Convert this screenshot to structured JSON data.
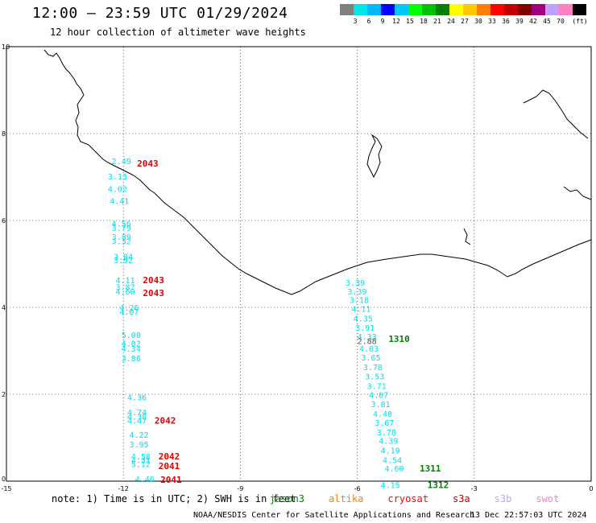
{
  "header": {
    "title": "12:00 – 23:59 UTC 01/29/2024",
    "subtitle": "12 hour collection of altimeter wave heights"
  },
  "scale": {
    "colors": [
      "#808080",
      "#00e5e5",
      "#00b8ff",
      "#0000ff",
      "#00c8ff",
      "#00ff00",
      "#00c000",
      "#008000",
      "#ffff00",
      "#ffc800",
      "#ff8000",
      "#ff0000",
      "#c00000",
      "#800000",
      "#a00080",
      "#c0a0ff",
      "#ff80c0",
      "#000000"
    ],
    "labels": [
      "3",
      "6",
      "9",
      "12",
      "15",
      "18",
      "21",
      "24",
      "27",
      "30",
      "33",
      "36",
      "39",
      "42",
      "45",
      "70"
    ],
    "unit": "(ft)"
  },
  "axes": {
    "x_ticks": [
      "-15",
      "-12",
      "-9",
      "-6",
      "-3",
      "0"
    ],
    "y_ticks": [
      "0",
      "2",
      "4",
      "6",
      "8",
      "10"
    ]
  },
  "observations": {
    "cyan": [
      {
        "text": "2.49",
        "lon": -12.3,
        "lat": 7.3
      },
      {
        "text": "3.13",
        "lon": -12.4,
        "lat": 6.94
      },
      {
        "text": "4.02",
        "lon": -12.4,
        "lat": 6.66
      },
      {
        "text": "4.41",
        "lon": -12.35,
        "lat": 6.38
      },
      {
        "text": "4.56",
        "lon": -12.3,
        "lat": 5.86
      },
      {
        "text": "3.79",
        "lon": -12.3,
        "lat": 5.76
      },
      {
        "text": "3.89",
        "lon": -12.3,
        "lat": 5.56
      },
      {
        "text": "3.32",
        "lon": -12.3,
        "lat": 5.45
      },
      {
        "text": "3.84",
        "lon": -12.25,
        "lat": 5.1
      },
      {
        "text": "3.92",
        "lon": -12.25,
        "lat": 5.02
      },
      {
        "text": "4.11",
        "lon": -12.2,
        "lat": 4.56
      },
      {
        "text": "3.87",
        "lon": -12.2,
        "lat": 4.4
      },
      {
        "text": "4.60",
        "lon": -12.2,
        "lat": 4.3
      },
      {
        "text": "4.26",
        "lon": -12.1,
        "lat": 3.93
      },
      {
        "text": "4.07",
        "lon": -12.1,
        "lat": 3.83
      },
      {
        "text": "5.00",
        "lon": -12.05,
        "lat": 3.3
      },
      {
        "text": "4.02",
        "lon": -12.05,
        "lat": 3.1
      },
      {
        "text": "4.34",
        "lon": -12.05,
        "lat": 2.98
      },
      {
        "text": "3.86",
        "lon": -12.05,
        "lat": 2.76
      },
      {
        "text": "4.36",
        "lon": -11.9,
        "lat": 1.86
      },
      {
        "text": "4.74",
        "lon": -11.9,
        "lat": 1.52
      },
      {
        "text": "4.38",
        "lon": -11.9,
        "lat": 1.42
      },
      {
        "text": "4.47",
        "lon": -11.9,
        "lat": 1.32
      },
      {
        "text": "4.22",
        "lon": -11.85,
        "lat": 1.0
      },
      {
        "text": "3.95",
        "lon": -11.85,
        "lat": 0.78
      },
      {
        "text": "4.58",
        "lon": -11.8,
        "lat": 0.5
      },
      {
        "text": "4.31",
        "lon": -11.8,
        "lat": 0.42
      },
      {
        "text": "5.12",
        "lon": -11.8,
        "lat": 0.32
      },
      {
        "text": "4.46",
        "lon": -11.7,
        "lat": -0.02
      },
      {
        "text": "3.39",
        "lon": -6.3,
        "lat": 4.5
      },
      {
        "text": "3.39",
        "lon": -6.25,
        "lat": 4.3
      },
      {
        "text": "3.18",
        "lon": -6.2,
        "lat": 4.1
      },
      {
        "text": "4.11",
        "lon": -6.15,
        "lat": 3.9
      },
      {
        "text": "4.35",
        "lon": -6.1,
        "lat": 3.68
      },
      {
        "text": "3.91",
        "lon": -6.05,
        "lat": 3.46
      },
      {
        "text": "4.33",
        "lon": -6.0,
        "lat": 3.26
      },
      {
        "text": "4.03",
        "lon": -5.95,
        "lat": 2.98
      },
      {
        "text": "3.65",
        "lon": -5.9,
        "lat": 2.78
      },
      {
        "text": "3.78",
        "lon": -5.85,
        "lat": 2.56
      },
      {
        "text": "3.53",
        "lon": -5.8,
        "lat": 2.34
      },
      {
        "text": "3.71",
        "lon": -5.75,
        "lat": 2.12
      },
      {
        "text": "4.07",
        "lon": -5.7,
        "lat": 1.92
      },
      {
        "text": "3.81",
        "lon": -5.65,
        "lat": 1.7
      },
      {
        "text": "4.40",
        "lon": -5.6,
        "lat": 1.48
      },
      {
        "text": "3.67",
        "lon": -5.55,
        "lat": 1.28
      },
      {
        "text": "3.78",
        "lon": -5.5,
        "lat": 1.06
      },
      {
        "text": "4.39",
        "lon": -5.45,
        "lat": 0.86
      },
      {
        "text": "4.19",
        "lon": -5.4,
        "lat": 0.64
      },
      {
        "text": "4.54",
        "lon": -5.35,
        "lat": 0.42
      },
      {
        "text": "4.60",
        "lon": -5.3,
        "lat": 0.22
      },
      {
        "text": "4.15",
        "lon": -5.4,
        "lat": -0.16
      }
    ],
    "gray": [
      {
        "text": "2.88",
        "lon": -6.0,
        "lat": 3.16
      }
    ],
    "cycles_red": [
      {
        "text": "2043",
        "lon": -11.65,
        "lat": 7.24
      },
      {
        "text": "2043",
        "lon": -11.5,
        "lat": 4.56
      },
      {
        "text": "2043",
        "lon": -11.5,
        "lat": 4.26
      },
      {
        "text": "2042",
        "lon": -11.2,
        "lat": 1.32
      },
      {
        "text": "2042",
        "lon": -11.1,
        "lat": 0.5
      },
      {
        "text": "2041",
        "lon": -11.1,
        "lat": 0.28
      },
      {
        "text": "2041",
        "lon": -11.05,
        "lat": -0.04
      }
    ],
    "cycles_green": [
      {
        "text": "1310",
        "lon": -5.2,
        "lat": 3.2
      },
      {
        "text": "1311",
        "lon": -4.4,
        "lat": 0.22
      },
      {
        "text": "1312",
        "lon": -4.2,
        "lat": -0.16
      }
    ]
  },
  "footer": {
    "note": "note: 1) Time is in UTC; 2) SWH is in feet",
    "legend": [
      {
        "name": "jason3",
        "color": "#008000"
      },
      {
        "name": "altika",
        "color": "#ff8000"
      },
      {
        "name": "cryosat",
        "color": "#ff0000"
      },
      {
        "name": "s3a",
        "color": "#c00000"
      },
      {
        "name": "s3b",
        "color": "#c0a0ff"
      },
      {
        "name": "swot",
        "color": "#ff80c0"
      }
    ],
    "credit": "NOAA/NESDIS Center for Satellite Applications and Research",
    "timestamp": "13 Dec 22:57:03 UTC 2024"
  }
}
